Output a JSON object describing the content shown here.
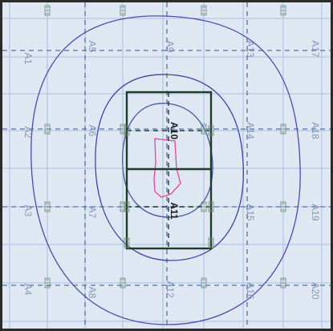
{
  "colors": {
    "background": "#dfe7f2",
    "grid_line": "#a9bfe0",
    "cell_label": "#8596b8",
    "dashed_line": "#5b6fa0",
    "contour_outer": "#4f4aa8",
    "contour_mid": "#3c46a3",
    "contour_inner": "#4657a8",
    "hotspot": "#e0489a",
    "rectangle": "#1f3b2a",
    "border": "#2b2b2b"
  },
  "cells": [
    {
      "id": "A1",
      "label": "A1"
    },
    {
      "id": "A2",
      "label": "A2"
    },
    {
      "id": "A3",
      "label": "A3"
    },
    {
      "id": "A4",
      "label": "A4"
    },
    {
      "id": "A5",
      "label": "A5"
    },
    {
      "id": "A6",
      "label": "A6"
    },
    {
      "id": "A7",
      "label": "A7"
    },
    {
      "id": "A8",
      "label": "A8"
    },
    {
      "id": "A9",
      "label": "A9"
    },
    {
      "id": "A10",
      "label": "A10"
    },
    {
      "id": "A11",
      "label": "A11"
    },
    {
      "id": "A12",
      "label": "A12"
    },
    {
      "id": "A13",
      "label": "A13"
    },
    {
      "id": "A14",
      "label": "A14"
    },
    {
      "id": "A15",
      "label": "A15"
    },
    {
      "id": "A16",
      "label": "A16"
    },
    {
      "id": "A17",
      "label": "A17"
    },
    {
      "id": "A18",
      "label": "A18"
    },
    {
      "id": "A19",
      "label": "A19"
    },
    {
      "id": "A20",
      "label": "A20"
    }
  ]
}
